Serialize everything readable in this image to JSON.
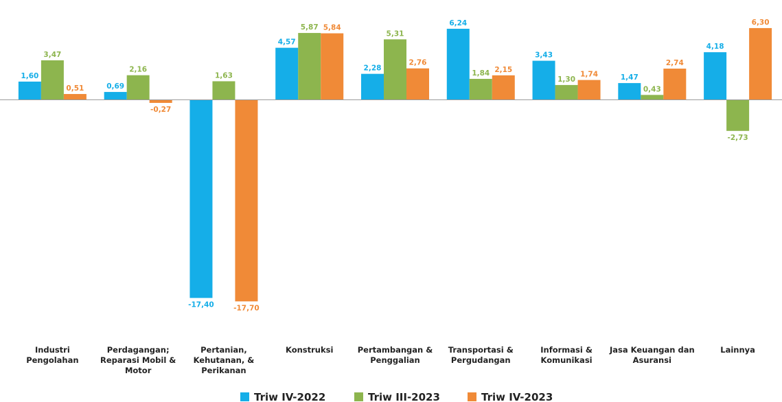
{
  "chart_data": {
    "type": "bar",
    "title": "",
    "xlabel": "",
    "ylabel": "",
    "ylim": [
      -17.7,
      6.3
    ],
    "grid": false,
    "legend_position": "bottom",
    "categories": [
      [
        "Industri",
        "Pengolahan"
      ],
      [
        "Perdagangan;",
        "Reparasi Mobil &",
        "Motor"
      ],
      [
        "Pertanian,",
        "Kehutanan, &",
        "Perikanan"
      ],
      [
        "Konstruksi"
      ],
      [
        "Pertambangan &",
        "Penggalian"
      ],
      [
        "Transportasi &",
        "Pergudangan"
      ],
      [
        "Informasi &",
        "Komunikasi"
      ],
      [
        "Jasa Keuangan dan",
        "Asuransi"
      ],
      [
        "Lainnya"
      ]
    ],
    "series": [
      {
        "name": "Triw IV-2022",
        "color": "#15aee8",
        "values": [
          1.6,
          0.69,
          -17.4,
          4.57,
          2.28,
          6.24,
          3.43,
          1.47,
          4.18
        ],
        "labels": [
          "1,60",
          "0,69",
          "-17,40",
          "4,57",
          "2,28",
          "6,24",
          "3,43",
          "1,47",
          "4,18"
        ]
      },
      {
        "name": "Triw III-2023",
        "color": "#8db54e",
        "values": [
          3.47,
          2.16,
          1.63,
          5.87,
          5.31,
          1.84,
          1.3,
          0.43,
          -2.73
        ],
        "labels": [
          "3,47",
          "2,16",
          "1,63",
          "5,87",
          "5,31",
          "1,84",
          "1,30",
          "0,43",
          "-2,73"
        ]
      },
      {
        "name": "Triw IV-2023",
        "color": "#f08a37",
        "values": [
          0.51,
          -0.27,
          -17.7,
          5.84,
          2.76,
          2.15,
          1.74,
          2.74,
          6.3
        ],
        "labels": [
          "0,51",
          "-0,27",
          "-17,70",
          "5,84",
          "2,76",
          "2,15",
          "1,74",
          "2,74",
          "6,30"
        ]
      }
    ]
  }
}
